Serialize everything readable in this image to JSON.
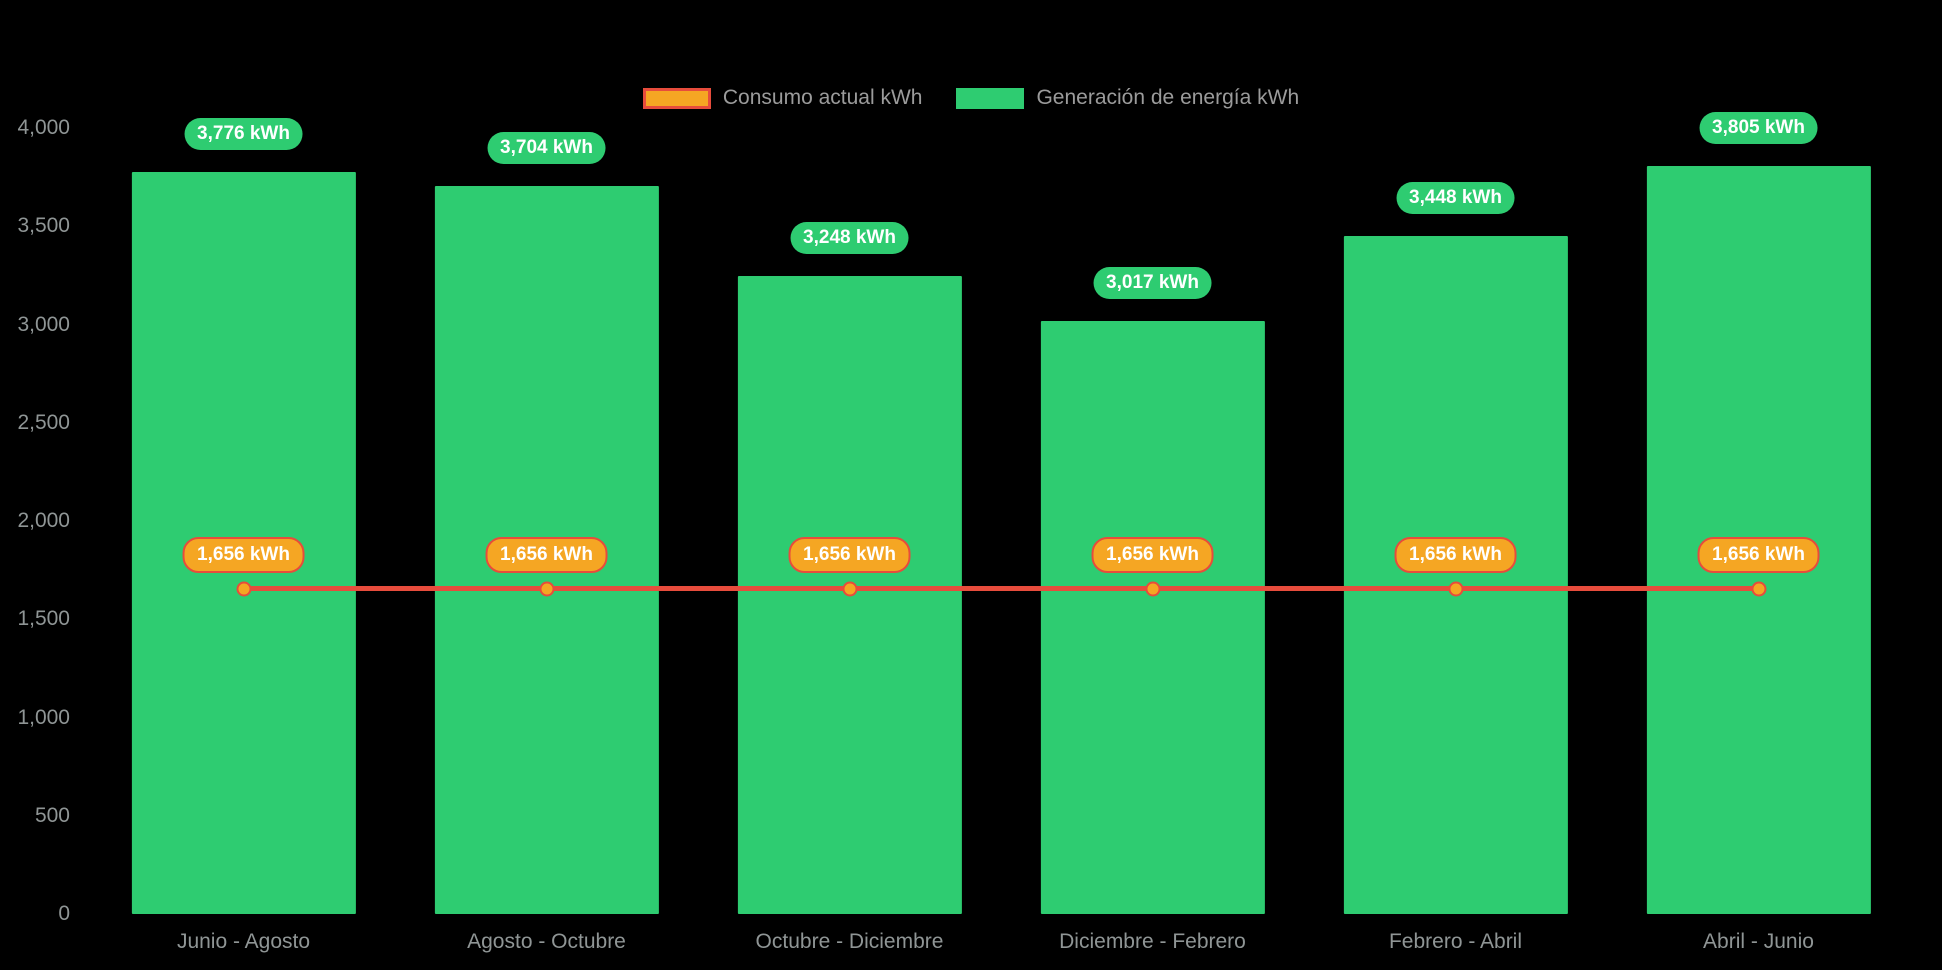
{
  "chart_data": {
    "type": "bar",
    "title": "",
    "background_color": "#000000",
    "grid": false,
    "legend_position": "top",
    "axis_label_color": "#8f9595",
    "categories": [
      "Junio - Agosto",
      "Agosto - Octubre",
      "Octubre - Diciembre",
      "Diciembre - Febrero",
      "Febrero - Abril",
      "Abril - Junio"
    ],
    "series": [
      {
        "name": "Consumo actual kWh",
        "type": "line",
        "line_color": "#e74c3c",
        "marker_color": "#f5a623",
        "values": [
          1656,
          1656,
          1656,
          1656,
          1656,
          1656
        ],
        "value_labels": [
          "1,656 kWh",
          "1,656 kWh",
          "1,656 kWh",
          "1,656 kWh",
          "1,656 kWh",
          "1,656 kWh"
        ]
      },
      {
        "name": "Generación de energía kWh",
        "type": "bar",
        "color": "#2ecc71",
        "values": [
          3776,
          3704,
          3248,
          3017,
          3448,
          3805
        ],
        "value_labels": [
          "3,776 kWh",
          "3,704 kWh",
          "3,248 kWh",
          "3,017 kWh",
          "3,448 kWh",
          "3,805 kWh"
        ]
      }
    ],
    "ylim": [
      0,
      4000
    ],
    "yticks": [
      0,
      500,
      1000,
      1500,
      2000,
      2500,
      3000,
      3500,
      4000
    ],
    "ytick_labels": [
      "0",
      "500",
      "1,000",
      "1,500",
      "2,000",
      "2,500",
      "3,000",
      "3,500",
      "4,000"
    ]
  }
}
